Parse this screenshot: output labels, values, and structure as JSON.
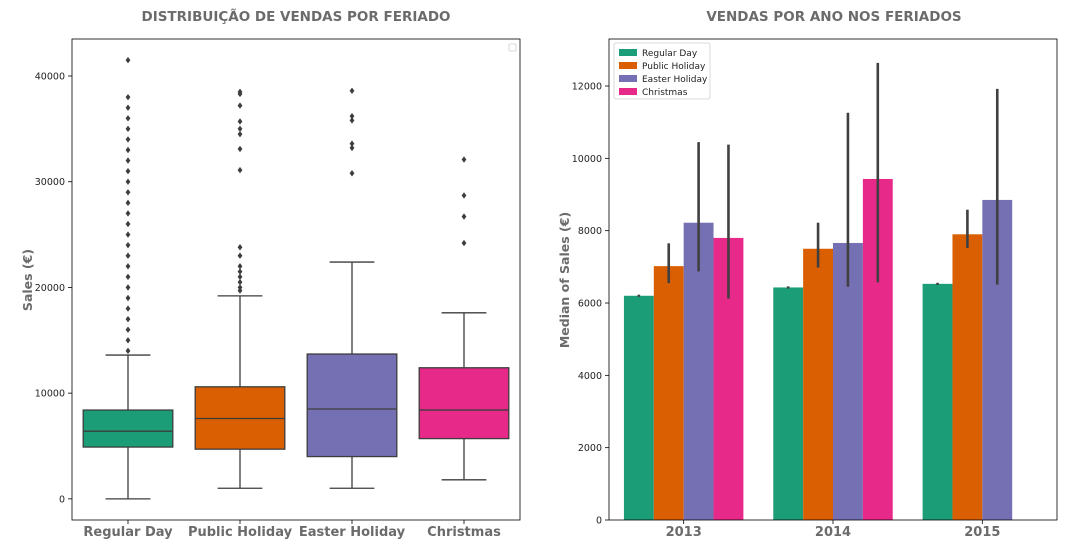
{
  "colors": {
    "Regular Day": "#1b9e77",
    "Public Holiday": "#d95f02",
    "Easter Holiday": "#7570b3",
    "Christmas": "#e7298a",
    "axis": "#000000",
    "text": "#6b6b6b",
    "whisker": "#3d3d3d"
  },
  "chart_data": [
    {
      "type": "box",
      "title": "DISTRIBUIÇÃO DE VENDAS POR FERIADO",
      "xlabel": "",
      "ylabel": "Sales (€)",
      "ylim": [
        -2000,
        43500
      ],
      "yticks": [
        0,
        10000,
        20000,
        30000,
        40000
      ],
      "yticklabels": [
        "0",
        "10000",
        "20000",
        "30000",
        "40000"
      ],
      "categories": [
        "Regular Day",
        "Public Holiday",
        "Easter Holiday",
        "Christmas"
      ],
      "boxes": [
        {
          "category": "Regular Day",
          "whisker_low": 0,
          "q1": 4900,
          "median": 6400,
          "q3": 8400,
          "whisker_high": 13600,
          "outliers": [
            14000,
            15000,
            16000,
            17000,
            18000,
            19000,
            20000,
            21000,
            22000,
            23000,
            24000,
            25000,
            26000,
            27000,
            28000,
            29000,
            30000,
            31000,
            32000,
            33000,
            34000,
            35000,
            36000,
            37000,
            38000,
            41500
          ]
        },
        {
          "category": "Public Holiday",
          "whisker_low": 1000,
          "q1": 4700,
          "median": 7600,
          "q3": 10600,
          "whisker_high": 19200,
          "outliers": [
            19700,
            20000,
            20500,
            21000,
            21500,
            22000,
            23000,
            23800,
            31100,
            33100,
            34500,
            35000,
            35700,
            37200,
            38300,
            38500
          ]
        },
        {
          "category": "Easter Holiday",
          "whisker_low": 1000,
          "q1": 4000,
          "median": 8500,
          "q3": 13700,
          "whisker_high": 22400,
          "outliers": [
            30800,
            33200,
            33600,
            35800,
            36200,
            38600
          ]
        },
        {
          "category": "Christmas",
          "whisker_low": 1800,
          "q1": 5700,
          "median": 8400,
          "q3": 12400,
          "whisker_high": 17600,
          "outliers": [
            24200,
            26700,
            28700,
            32100
          ]
        }
      ],
      "legend": "top-right"
    },
    {
      "type": "bar",
      "title": "VENDAS POR ANO NOS FERIADOS",
      "xlabel": "",
      "ylabel": "Median of Sales (€)",
      "ylim": [
        0,
        13300
      ],
      "yticks": [
        0,
        2000,
        4000,
        6000,
        8000,
        10000,
        12000
      ],
      "yticklabels": [
        "0",
        "2000",
        "4000",
        "6000",
        "8000",
        "10000",
        "12000"
      ],
      "categories": [
        "2013",
        "2014",
        "2015"
      ],
      "series": [
        {
          "name": "Regular Day",
          "values": [
            6200,
            6430,
            6530
          ],
          "ci": [
            [
              6170,
              6230
            ],
            [
              6400,
              6460
            ],
            [
              6500,
              6560
            ]
          ]
        },
        {
          "name": "Public Holiday",
          "values": [
            7020,
            7500,
            7900
          ],
          "ci": [
            [
              6550,
              7650
            ],
            [
              6980,
              8220
            ],
            [
              7520,
              8580
            ]
          ]
        },
        {
          "name": "Easter Holiday",
          "values": [
            8220,
            7660,
            8850
          ],
          "ci": [
            [
              6870,
              10450
            ],
            [
              6450,
              11260
            ],
            [
              6510,
              11920
            ]
          ]
        },
        {
          "name": "Christmas",
          "values": [
            7800,
            9430,
            null
          ],
          "ci": [
            [
              6120,
              10380
            ],
            [
              6570,
              12640
            ],
            null
          ]
        }
      ],
      "legend": "top-left"
    }
  ]
}
